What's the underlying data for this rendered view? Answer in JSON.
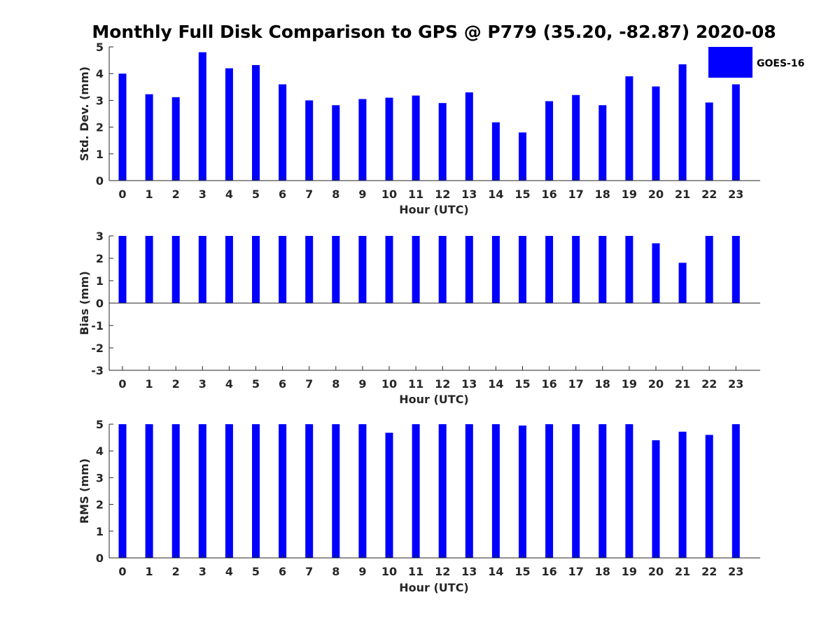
{
  "title": "Monthly Full Disk Comparison to GPS @ P779 (35.20, -82.87) 2020-08",
  "legend": {
    "label": "GOES-16",
    "color": "#0000ff"
  },
  "chart_data": [
    {
      "type": "bar",
      "id": "std",
      "xlabel": "Hour (UTC)",
      "ylabel": "Std. Dev. (mm)",
      "ylim": [
        0,
        5
      ],
      "yticks": [
        "0",
        "1",
        "2",
        "3",
        "4",
        "5"
      ],
      "categories": [
        "0",
        "1",
        "2",
        "3",
        "4",
        "5",
        "6",
        "7",
        "8",
        "9",
        "10",
        "11",
        "12",
        "13",
        "14",
        "15",
        "16",
        "17",
        "18",
        "19",
        "20",
        "21",
        "22",
        "23"
      ],
      "series": [
        {
          "name": "GOES-16",
          "values": [
            4.0,
            3.23,
            3.12,
            4.8,
            4.2,
            4.32,
            3.6,
            3.0,
            2.82,
            3.05,
            3.1,
            3.18,
            2.9,
            3.3,
            2.18,
            1.8,
            2.97,
            3.2,
            2.82,
            3.9,
            3.52,
            4.35,
            2.92,
            3.6
          ]
        }
      ],
      "legend_position": "top-right",
      "grid": false
    },
    {
      "type": "bar",
      "id": "bias",
      "xlabel": "Hour (UTC)",
      "ylabel": "Bias (mm)",
      "ylim": [
        -3,
        3
      ],
      "yticks": [
        "-3",
        "-2",
        "-1",
        "0",
        "1",
        "2",
        "3"
      ],
      "categories": [
        "0",
        "1",
        "2",
        "3",
        "4",
        "5",
        "6",
        "7",
        "8",
        "9",
        "10",
        "11",
        "12",
        "13",
        "14",
        "15",
        "16",
        "17",
        "18",
        "19",
        "20",
        "21",
        "22",
        "23"
      ],
      "series": [
        {
          "name": "GOES-16",
          "values": [
            3,
            3,
            3,
            3,
            3,
            3,
            3,
            3,
            3,
            3,
            3,
            3,
            3,
            3,
            3,
            3,
            3,
            3,
            3,
            3,
            2.67,
            1.8,
            3,
            3
          ]
        }
      ],
      "grid": false
    },
    {
      "type": "bar",
      "id": "rms",
      "xlabel": "Hour (UTC)",
      "ylabel": "RMS (mm)",
      "ylim": [
        0,
        5
      ],
      "yticks": [
        "0",
        "1",
        "2",
        "3",
        "4",
        "5"
      ],
      "categories": [
        "0",
        "1",
        "2",
        "3",
        "4",
        "5",
        "6",
        "7",
        "8",
        "9",
        "10",
        "11",
        "12",
        "13",
        "14",
        "15",
        "16",
        "17",
        "18",
        "19",
        "20",
        "21",
        "22",
        "23"
      ],
      "series": [
        {
          "name": "GOES-16",
          "values": [
            5,
            5,
            5,
            5,
            5,
            5,
            5,
            5,
            5,
            5,
            4.68,
            5,
            5,
            5,
            5,
            4.95,
            5,
            5,
            5,
            5,
            4.4,
            4.72,
            4.6,
            5
          ]
        }
      ],
      "grid": false
    }
  ]
}
